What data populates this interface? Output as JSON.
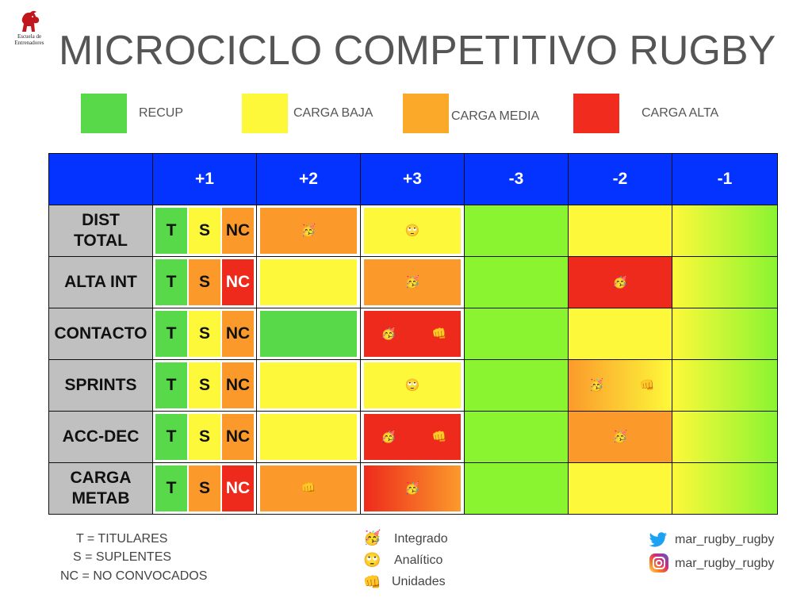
{
  "logo": {
    "line1": "Escuela de",
    "line2": "Entrenadores"
  },
  "title": "MICROCICLO COMPETITIVO RUGBY",
  "legend": [
    {
      "label": "RECUP",
      "color": "#57d94a"
    },
    {
      "label": "CARGA BAJA",
      "color": "#fdf93a"
    },
    {
      "label": "CARGA MEDIA",
      "color": "#fba928"
    },
    {
      "label": "CARGA ALTA",
      "color": "#f12c1f"
    }
  ],
  "columns": [
    "",
    "+1",
    "+2",
    "+3",
    "-3",
    "-2",
    "-1"
  ],
  "rows": [
    {
      "label": "DIST TOTAL",
      "plus1": [
        {
          "t": "T",
          "c": "green"
        },
        {
          "t": "S",
          "c": "yellow"
        },
        {
          "t": "NC",
          "c": "orange"
        }
      ],
      "cells": [
        {
          "fill": "orange",
          "icons": [
            "integrado"
          ]
        },
        {
          "fill": "yellow",
          "icons": [
            "analitico"
          ]
        },
        {
          "fill": "lime"
        },
        {
          "fill": "yellow"
        },
        {
          "fill": "grad-yg"
        }
      ]
    },
    {
      "label": "ALTA INT",
      "plus1": [
        {
          "t": "T",
          "c": "green"
        },
        {
          "t": "S",
          "c": "orange"
        },
        {
          "t": "NC",
          "c": "red"
        }
      ],
      "cells": [
        {
          "fill": "yellow"
        },
        {
          "fill": "orange",
          "icons": [
            "integrado"
          ]
        },
        {
          "fill": "lime"
        },
        {
          "fill": "red",
          "icons": [
            "integrado"
          ]
        },
        {
          "fill": "grad-yg"
        }
      ]
    },
    {
      "label": "CONTACTO",
      "plus1": [
        {
          "t": "T",
          "c": "green"
        },
        {
          "t": "S",
          "c": "yellow"
        },
        {
          "t": "NC",
          "c": "orange"
        }
      ],
      "cells": [
        {
          "fill": "green"
        },
        {
          "fill": "red",
          "icons": [
            "integrado",
            "unidades"
          ]
        },
        {
          "fill": "lime"
        },
        {
          "fill": "yellow"
        },
        {
          "fill": "grad-yg"
        }
      ]
    },
    {
      "label": "SPRINTS",
      "plus1": [
        {
          "t": "T",
          "c": "green"
        },
        {
          "t": "S",
          "c": "yellow"
        },
        {
          "t": "NC",
          "c": "orange"
        }
      ],
      "cells": [
        {
          "fill": "yellow"
        },
        {
          "fill": "yellow",
          "icons": [
            "analitico"
          ]
        },
        {
          "fill": "lime"
        },
        {
          "fill": "grad-oy",
          "icons": [
            "integrado",
            "unidades"
          ]
        },
        {
          "fill": "grad-yg"
        }
      ]
    },
    {
      "label": "ACC-DEC",
      "plus1": [
        {
          "t": "T",
          "c": "green"
        },
        {
          "t": "S",
          "c": "yellow"
        },
        {
          "t": "NC",
          "c": "orange"
        }
      ],
      "cells": [
        {
          "fill": "yellow"
        },
        {
          "fill": "red",
          "icons": [
            "integrado",
            "unidades"
          ]
        },
        {
          "fill": "lime"
        },
        {
          "fill": "orange",
          "icons": [
            "integrado"
          ]
        },
        {
          "fill": "grad-yg"
        }
      ]
    },
    {
      "label": "CARGA METAB",
      "plus1": [
        {
          "t": "T",
          "c": "green"
        },
        {
          "t": "S",
          "c": "orange"
        },
        {
          "t": "NC",
          "c": "red"
        }
      ],
      "cells": [
        {
          "fill": "orange",
          "icons": [
            "unidades"
          ]
        },
        {
          "fill": "grad-ro",
          "icons": [
            "integrado"
          ]
        },
        {
          "fill": "lime"
        },
        {
          "fill": "yellow"
        },
        {
          "fill": "grad-yg"
        }
      ]
    }
  ],
  "colors": {
    "green": "#57d94a",
    "lime": "#8af431",
    "yellow": "#fdf93a",
    "orange": "#fb9a2b",
    "red": "#ee2a1c",
    "header_blue": "#0433ff"
  },
  "icons": {
    "integrado": "🥳",
    "analitico": "🙄",
    "unidades": "👊"
  },
  "footer_left": [
    "T = TITULARES",
    "S = SUPLENTES",
    "NC = NO CONVOCADOS"
  ],
  "footer_mid": [
    {
      "icon": "integrado",
      "label": "Integrado"
    },
    {
      "icon": "analitico",
      "label": "Analítico"
    },
    {
      "icon": "unidades",
      "label": "Unidades"
    }
  ],
  "social": [
    {
      "icon": "twitter-icon",
      "label": "mar_rugby_rugby"
    },
    {
      "icon": "instagram-icon",
      "label": "mar_rugby_rugby"
    }
  ]
}
